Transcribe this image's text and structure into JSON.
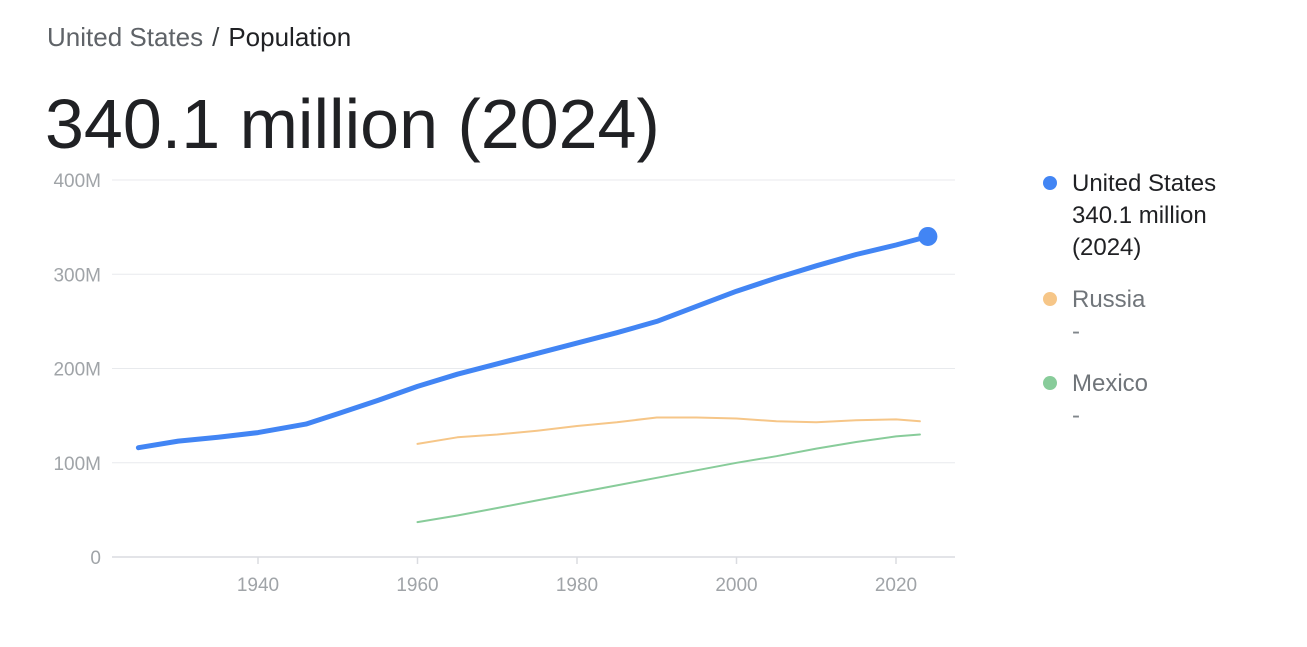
{
  "breadcrumb": {
    "country": "United States",
    "separator": "/",
    "metric": "Population"
  },
  "headline": "340.1 million (2024)",
  "colors": {
    "united_states": "#4285f4",
    "russia": "#f6c688",
    "mexico": "#88cc9a",
    "grid": "#e8eaed",
    "tick_text": "#a0a4a8"
  },
  "legend": [
    {
      "name": "United States",
      "value_line1": "340.1 million",
      "value_line2": "(2024)"
    },
    {
      "name": "Russia",
      "value_line1": "-",
      "value_line2": ""
    },
    {
      "name": "Mexico",
      "value_line1": "-",
      "value_line2": ""
    }
  ],
  "chart_data": {
    "type": "line",
    "title": "",
    "xlabel": "",
    "ylabel": "",
    "xlim": [
      1924,
      2027
    ],
    "ylim": [
      0,
      400
    ],
    "x_ticks": [
      1940,
      1960,
      1980,
      2000,
      2020
    ],
    "x_tick_labels": [
      "1940",
      "1960",
      "1980",
      "2000",
      "2020"
    ],
    "y_ticks": [
      0,
      100,
      200,
      300,
      400
    ],
    "y_tick_labels": [
      "0",
      "100M",
      "200M",
      "300M",
      "400M"
    ],
    "grid": "horizontal",
    "legend_position": "right",
    "highlight_point": {
      "series": "United States",
      "x": 2024,
      "y": 340.1
    },
    "series": [
      {
        "name": "United States",
        "x": [
          1925,
          1930,
          1935,
          1940,
          1946,
          1950,
          1955,
          1960,
          1965,
          1970,
          1975,
          1980,
          1985,
          1990,
          1995,
          2000,
          2005,
          2010,
          2015,
          2020,
          2024
        ],
        "values": [
          116,
          123,
          127,
          132,
          141,
          152,
          166,
          181,
          194,
          205,
          216,
          227,
          238,
          250,
          266,
          282,
          296,
          309,
          321,
          331,
          340.1
        ]
      },
      {
        "name": "Russia",
        "x": [
          1960,
          1965,
          1970,
          1975,
          1980,
          1985,
          1990,
          1995,
          2000,
          2005,
          2010,
          2015,
          2020,
          2023
        ],
        "values": [
          120,
          127,
          130,
          134,
          139,
          143,
          148,
          148,
          147,
          144,
          143,
          145,
          146,
          144
        ]
      },
      {
        "name": "Mexico",
        "x": [
          1960,
          1965,
          1970,
          1975,
          1980,
          1985,
          1990,
          1995,
          2000,
          2005,
          2010,
          2015,
          2020,
          2023
        ],
        "values": [
          37,
          44,
          52,
          60,
          68,
          76,
          84,
          92,
          100,
          107,
          115,
          122,
          128,
          130
        ]
      }
    ]
  }
}
